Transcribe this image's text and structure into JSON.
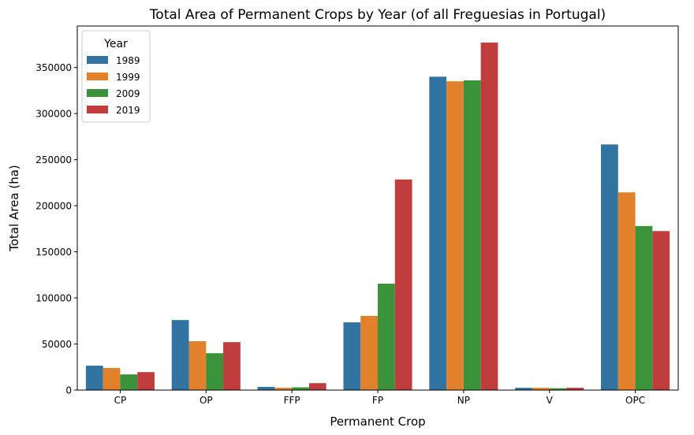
{
  "chart_data": {
    "type": "bar",
    "title": "Total Area of Permanent Crops by Year (of all Freguesias in Portugal)",
    "xlabel": "Permanent Crop",
    "ylabel": "Total Area (ha)",
    "categories": [
      "CP",
      "OP",
      "FFP",
      "FP",
      "NP",
      "V",
      "OPC"
    ],
    "ylim": [
      0,
      395000
    ],
    "yticks": [
      0,
      50000,
      100000,
      150000,
      200000,
      250000,
      300000,
      350000
    ],
    "grid": false,
    "legend": {
      "title": "Year",
      "placement": "top-left"
    },
    "series": [
      {
        "name": "1989",
        "color": "#3274a1",
        "values": [
          26500,
          76000,
          3500,
          73500,
          340000,
          2500,
          266500
        ]
      },
      {
        "name": "1999",
        "color": "#e1812c",
        "values": [
          24000,
          53000,
          2500,
          80500,
          335000,
          2500,
          214500
        ]
      },
      {
        "name": "2009",
        "color": "#3a923a",
        "values": [
          17000,
          40000,
          3000,
          115500,
          336000,
          2000,
          178000
        ]
      },
      {
        "name": "2019",
        "color": "#c03d3e",
        "values": [
          19500,
          52000,
          7500,
          228500,
          377000,
          2500,
          172500
        ]
      }
    ]
  }
}
